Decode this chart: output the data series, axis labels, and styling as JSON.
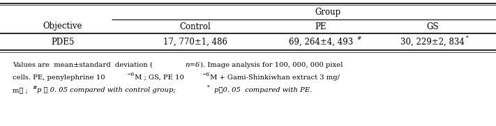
{
  "title": "Group",
  "col_header1": "Objective",
  "col_header2": "Control",
  "col_header3": "PE",
  "col_header4": "GS",
  "row_label": "PDE5",
  "val_control": "17, 770±1, 486",
  "val_pe": "69, 264±4, 493",
  "val_pe_sup": "#",
  "val_gs": "30, 229±2, 834",
  "val_gs_sup": "*",
  "bg_color": "#ffffff",
  "text_color": "#000000",
  "line_color": "#000000",
  "main_font": 8.5,
  "footnote_font": 7.2,
  "sup_font": 5.5
}
